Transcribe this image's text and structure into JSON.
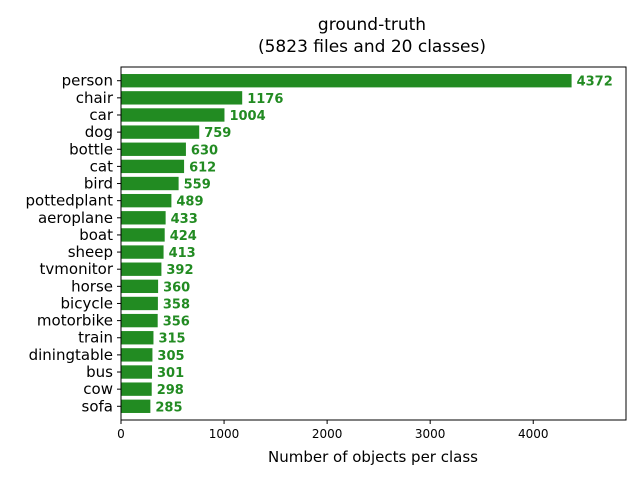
{
  "chart_data": {
    "type": "bar",
    "orientation": "horizontal",
    "title": "ground-truth",
    "subtitle": "(5823 files and 20 classes)",
    "xlabel": "Number of objects per class",
    "ylabel": "",
    "xlim": [
      0,
      4900
    ],
    "xticks": [
      0,
      1000,
      2000,
      3000,
      4000
    ],
    "xtick_labels": [
      "0",
      "1000",
      "2000",
      "3000",
      "4000"
    ],
    "grid": false,
    "bar_color": "#228b22",
    "label_color": "#228b22",
    "categories": [
      "person",
      "chair",
      "car",
      "dog",
      "bottle",
      "cat",
      "bird",
      "pottedplant",
      "aeroplane",
      "boat",
      "sheep",
      "tvmonitor",
      "horse",
      "bicycle",
      "motorbike",
      "train",
      "diningtable",
      "bus",
      "cow",
      "sofa"
    ],
    "values": [
      4372,
      1176,
      1004,
      759,
      630,
      612,
      559,
      489,
      433,
      424,
      413,
      392,
      360,
      358,
      356,
      315,
      305,
      301,
      298,
      285
    ],
    "data_labels": [
      "4372",
      "1176",
      "1004",
      "759",
      "630",
      "612",
      "559",
      "489",
      "433",
      "424",
      "413",
      "392",
      "360",
      "358",
      "356",
      "315",
      "305",
      "301",
      "298",
      "285"
    ]
  }
}
